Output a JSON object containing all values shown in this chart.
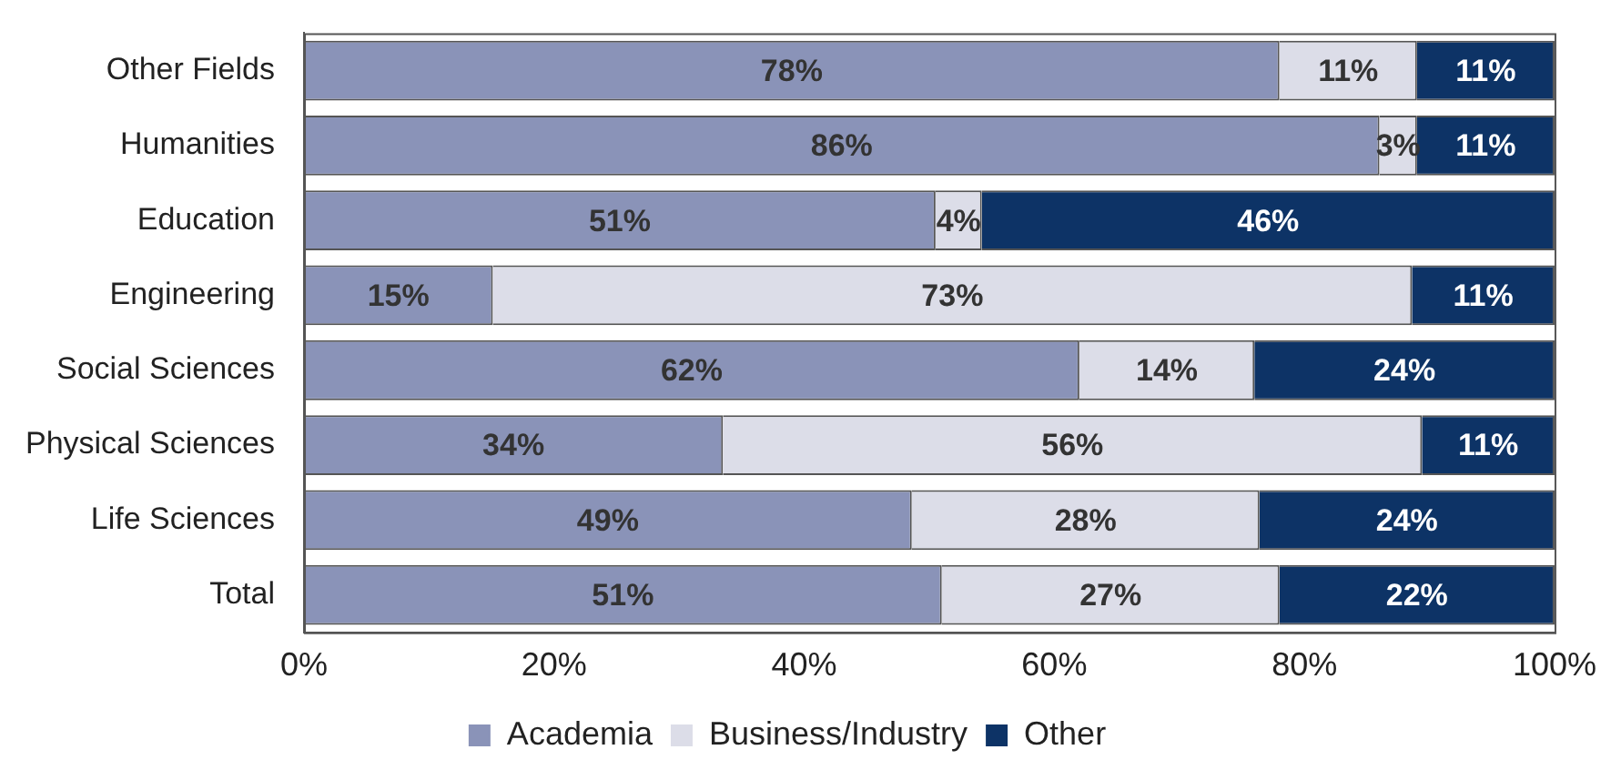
{
  "chart_data": {
    "type": "bar",
    "orientation": "horizontal",
    "stacked": true,
    "grid": false,
    "legend": "bottom",
    "categories": [
      "Other Fields",
      "Humanities",
      "Education",
      "Engineering",
      "Social Sciences",
      "Physical Sciences",
      "Life Sciences",
      "Total"
    ],
    "series": [
      {
        "name": "Academia",
        "color": "#8a93b8",
        "values": [
          78,
          86,
          50.5,
          15.1,
          62,
          33.5,
          48.6,
          51
        ],
        "value_labels": [
          "78%",
          "86%",
          "51%",
          "15%",
          "62%",
          "34%",
          "49%",
          "51%"
        ]
      },
      {
        "name": "Business/Industry",
        "color": "#dcdde8",
        "values": [
          11,
          3,
          3.7,
          73.5,
          14,
          55.9,
          27.8,
          27
        ],
        "value_labels": [
          "11%",
          "3%",
          "4%",
          "73%",
          "14%",
          "56%",
          "28%",
          "27%"
        ]
      },
      {
        "name": "Other",
        "color": "#0d3366",
        "values": [
          11,
          11,
          45.8,
          11.4,
          24,
          10.6,
          23.6,
          22
        ],
        "value_labels": [
          "11%",
          "11%",
          "46%",
          "11%",
          "24%",
          "11%",
          "24%",
          "22%"
        ]
      }
    ],
    "xlim": [
      0,
      100
    ],
    "xticks": [
      {
        "value": 0,
        "label": "0%"
      },
      {
        "value": 20,
        "label": "20%"
      },
      {
        "value": 40,
        "label": "40%"
      },
      {
        "value": 60,
        "label": "60%"
      },
      {
        "value": 80,
        "label": "80%"
      },
      {
        "value": 100,
        "label": "100%"
      }
    ]
  }
}
